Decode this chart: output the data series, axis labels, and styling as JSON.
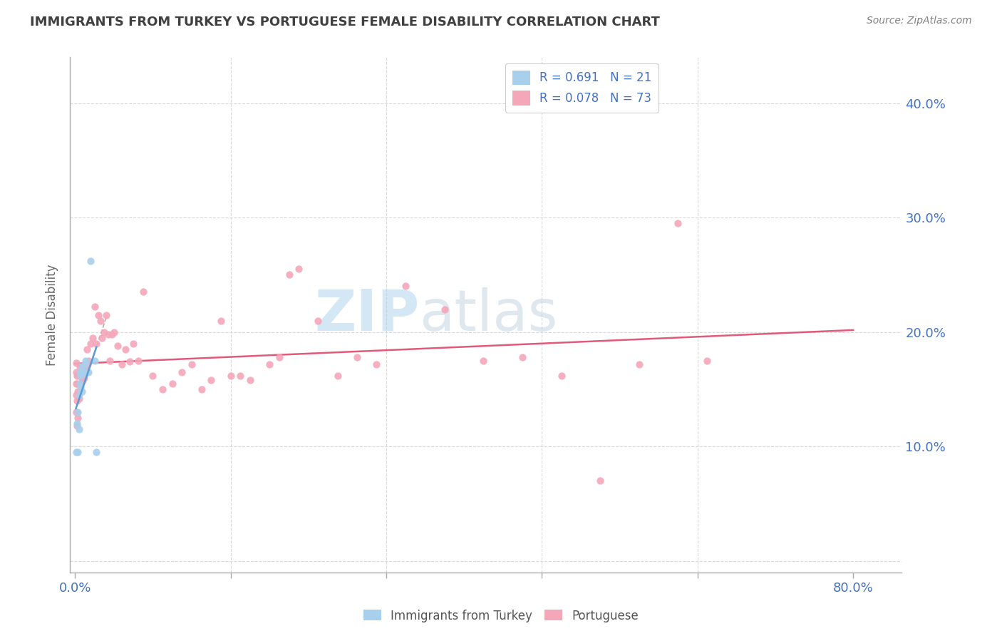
{
  "title": "IMMIGRANTS FROM TURKEY VS PORTUGUESE FEMALE DISABILITY CORRELATION CHART",
  "source": "Source: ZipAtlas.com",
  "ylabel": "Female Disability",
  "turkey_color": "#a8d0ec",
  "turkey_trendline_color": "#5b9bd5",
  "portuguese_color": "#f4a7b9",
  "portuguese_trendline_color": "#e05a7a",
  "watermark_text": "ZIPatlas",
  "watermark_color": "#c5dff0",
  "background_color": "#ffffff",
  "grid_color": "#d9d9d9",
  "axis_label_color": "#4472c4",
  "title_color": "#404040",
  "source_color": "#808080",
  "xlim": [
    -0.005,
    0.85
  ],
  "ylim": [
    -0.01,
    0.44
  ],
  "xticks": [
    0.0,
    0.16,
    0.32,
    0.48,
    0.64,
    0.8
  ],
  "yticks": [
    0.0,
    0.1,
    0.2,
    0.3,
    0.4
  ],
  "turkey_x": [
    0.001,
    0.002,
    0.003,
    0.003,
    0.004,
    0.004,
    0.005,
    0.005,
    0.006,
    0.006,
    0.007,
    0.007,
    0.008,
    0.009,
    0.01,
    0.011,
    0.012,
    0.014,
    0.016,
    0.02,
    0.022
  ],
  "turkey_y": [
    0.095,
    0.12,
    0.095,
    0.13,
    0.115,
    0.145,
    0.155,
    0.165,
    0.152,
    0.162,
    0.148,
    0.17,
    0.165,
    0.165,
    0.172,
    0.175,
    0.165,
    0.165,
    0.262,
    0.175,
    0.095
  ],
  "port_x": [
    0.001,
    0.001,
    0.001,
    0.001,
    0.001,
    0.002,
    0.002,
    0.002,
    0.002,
    0.003,
    0.003,
    0.003,
    0.004,
    0.004,
    0.005,
    0.005,
    0.006,
    0.007,
    0.008,
    0.009,
    0.01,
    0.011,
    0.012,
    0.013,
    0.014,
    0.016,
    0.018,
    0.02,
    0.022,
    0.024,
    0.026,
    0.028,
    0.03,
    0.032,
    0.034,
    0.036,
    0.038,
    0.04,
    0.044,
    0.048,
    0.052,
    0.056,
    0.06,
    0.065,
    0.07,
    0.08,
    0.09,
    0.1,
    0.11,
    0.12,
    0.13,
    0.14,
    0.15,
    0.16,
    0.17,
    0.18,
    0.2,
    0.21,
    0.22,
    0.23,
    0.25,
    0.27,
    0.29,
    0.31,
    0.34,
    0.38,
    0.42,
    0.46,
    0.5,
    0.54,
    0.58,
    0.62,
    0.65
  ],
  "port_y": [
    0.13,
    0.145,
    0.155,
    0.165,
    0.173,
    0.118,
    0.14,
    0.155,
    0.162,
    0.125,
    0.148,
    0.163,
    0.142,
    0.162,
    0.155,
    0.17,
    0.162,
    0.157,
    0.158,
    0.16,
    0.17,
    0.167,
    0.185,
    0.172,
    0.175,
    0.19,
    0.195,
    0.222,
    0.19,
    0.215,
    0.21,
    0.195,
    0.2,
    0.215,
    0.198,
    0.175,
    0.198,
    0.2,
    0.188,
    0.172,
    0.185,
    0.174,
    0.19,
    0.175,
    0.235,
    0.162,
    0.15,
    0.155,
    0.165,
    0.172,
    0.15,
    0.158,
    0.21,
    0.162,
    0.162,
    0.158,
    0.172,
    0.178,
    0.25,
    0.255,
    0.21,
    0.162,
    0.178,
    0.172,
    0.24,
    0.22,
    0.175,
    0.178,
    0.162,
    0.07,
    0.172,
    0.295,
    0.175
  ]
}
